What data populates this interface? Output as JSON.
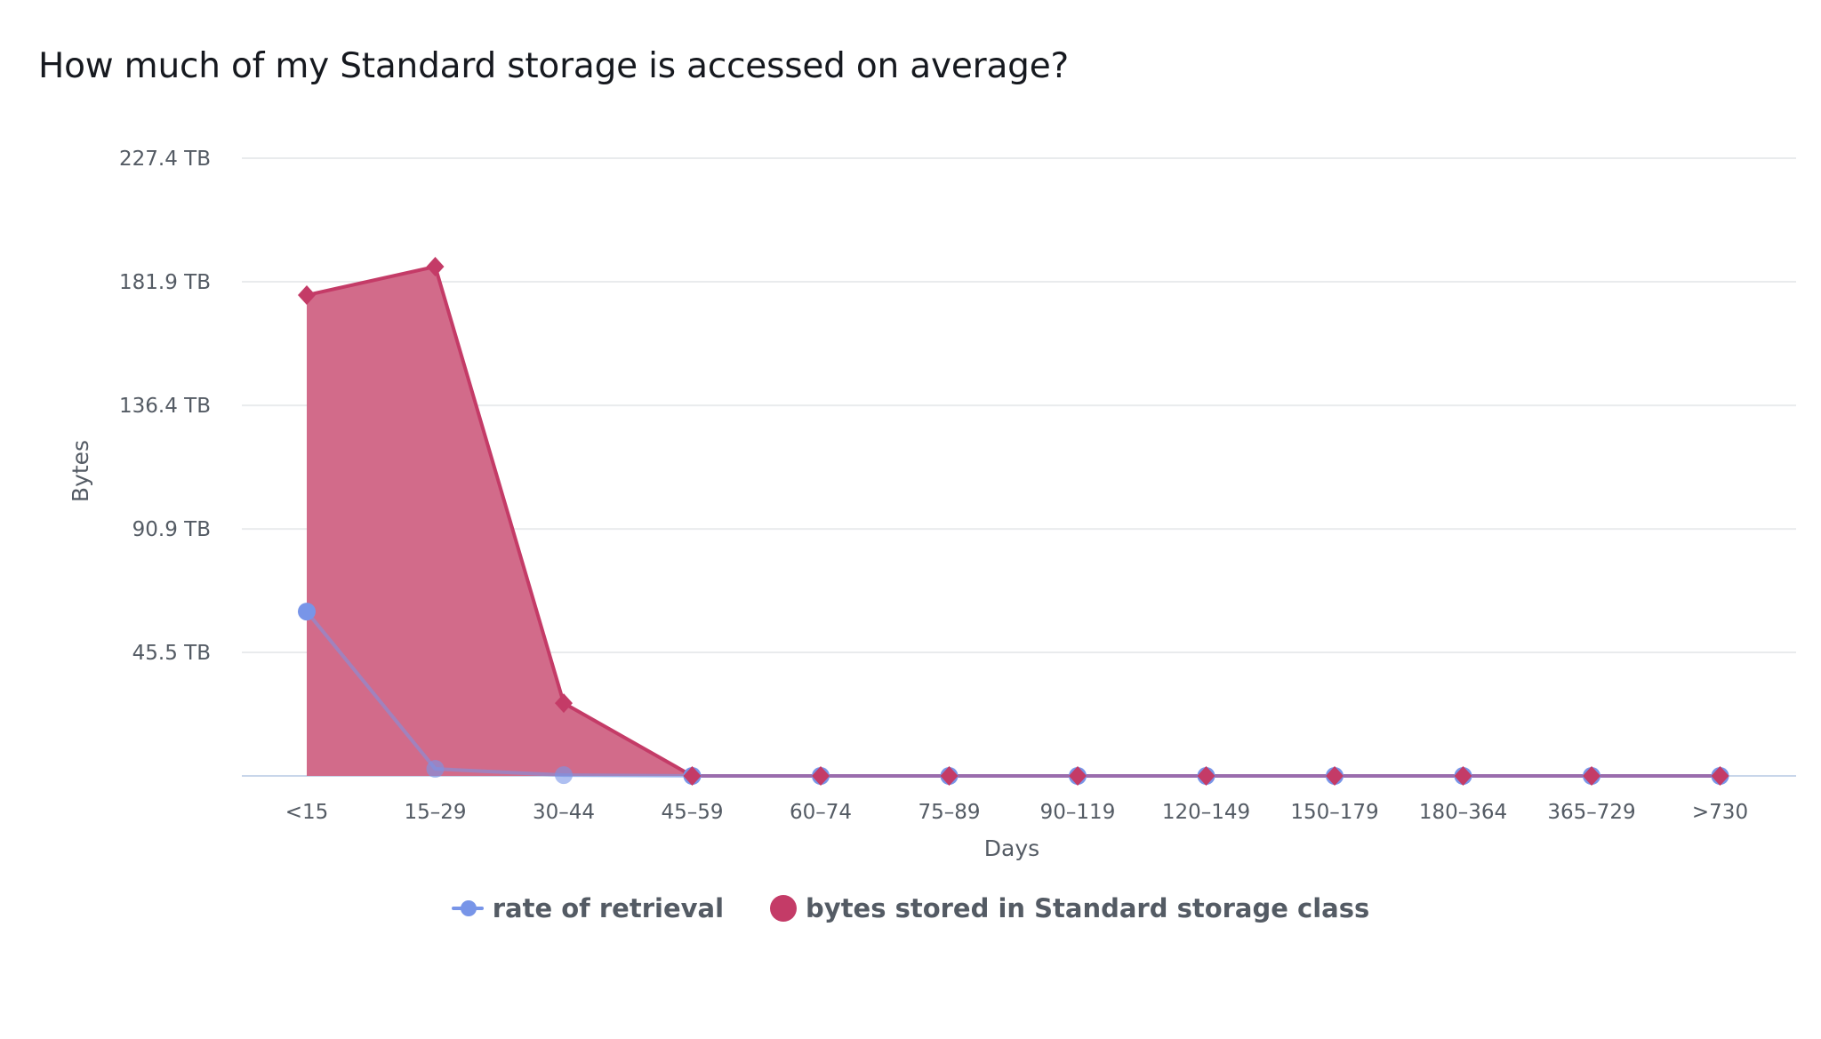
{
  "title": "How much of my Standard storage is accessed on average?",
  "colors": {
    "retrieval": "#7895e8",
    "bytes": "#c43b67",
    "bytes_fill": "#d26b8a",
    "grid": "#e9ebed",
    "axis": "#c8d6ea",
    "text": "#545b64"
  },
  "legend": [
    {
      "label": "rate of retrieval",
      "icon": "line-circle-marker-icon"
    },
    {
      "label": "bytes stored in Standard storage class",
      "icon": "filled-circle-icon"
    }
  ],
  "chart_data": {
    "type": "area",
    "title": "How much of my Standard storage is accessed on average?",
    "xlabel": "Days",
    "ylabel": "Bytes",
    "y_unit": "TB",
    "ylim": [
      0,
      227.4
    ],
    "y_ticks": [
      "227.4 TB",
      "181.9 TB",
      "136.4 TB",
      "90.9 TB",
      "45.5 TB"
    ],
    "y_tick_values": [
      227.4,
      181.9,
      136.4,
      90.9,
      45.5
    ],
    "grid": true,
    "legend_position": "bottom",
    "categories": [
      "<15",
      "15-29",
      "30-44",
      "45-59",
      "60-74",
      "75-89",
      "90-119",
      "120-149",
      "150-179",
      "180-364",
      "365-729",
      ">730"
    ],
    "series": [
      {
        "name": "rate of retrieval",
        "type": "line",
        "marker": "circle",
        "values": [
          60.5,
          2.6,
          0.3,
          0,
          0,
          0,
          0,
          0,
          0,
          0,
          0,
          0
        ]
      },
      {
        "name": "bytes stored in Standard storage class",
        "type": "area",
        "marker": "diamond",
        "values": [
          177.0,
          187.5,
          26.8,
          0,
          0,
          0,
          0,
          0,
          0,
          0,
          0,
          0
        ]
      }
    ]
  }
}
